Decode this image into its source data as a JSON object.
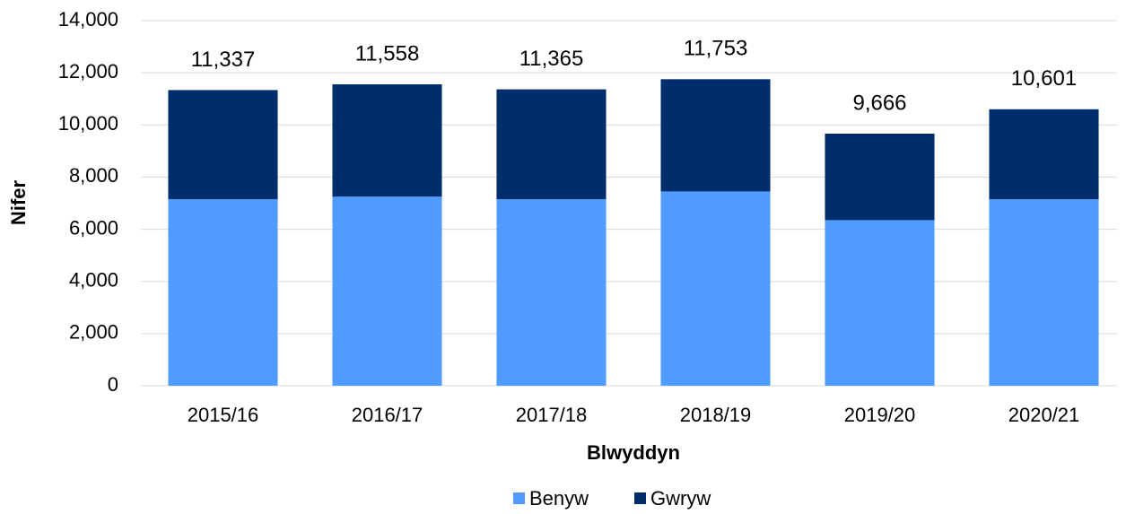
{
  "chart_data": {
    "type": "stacked_bar",
    "categories": [
      "2015/16",
      "2016/17",
      "2017/18",
      "2018/19",
      "2019/20",
      "2020/21"
    ],
    "series": [
      {
        "name": "Benyw",
        "color": "#4f9bff",
        "values": [
          7150,
          7250,
          7150,
          7450,
          6350,
          7150
        ]
      },
      {
        "name": "Gwryw",
        "color": "#002d6b",
        "values": [
          4187,
          4308,
          4215,
          4303,
          3316,
          3451
        ]
      }
    ],
    "totals": {
      "values": [
        11337,
        11558,
        11365,
        11753,
        9666,
        10601
      ],
      "value_labels": [
        "11,337",
        "11,558",
        "11,365",
        "11,753",
        "9,666",
        "10,601"
      ]
    },
    "xlabel": "Blwyddyn",
    "ylabel": "Nifer",
    "ylim": [
      0,
      14000
    ],
    "yticks": [
      0,
      {
        "value": 2000,
        "label": "2,000"
      },
      {
        "value": 4000,
        "label": "4,000"
      },
      {
        "value": 6000,
        "label": "6,000"
      },
      {
        "value": 8000,
        "label": "8,000"
      },
      {
        "value": 10000,
        "label": "10,000"
      },
      {
        "value": 12000,
        "label": "12,000"
      },
      {
        "value": 14000,
        "label": "14,000"
      }
    ],
    "grid": true,
    "legend": "bottom"
  }
}
